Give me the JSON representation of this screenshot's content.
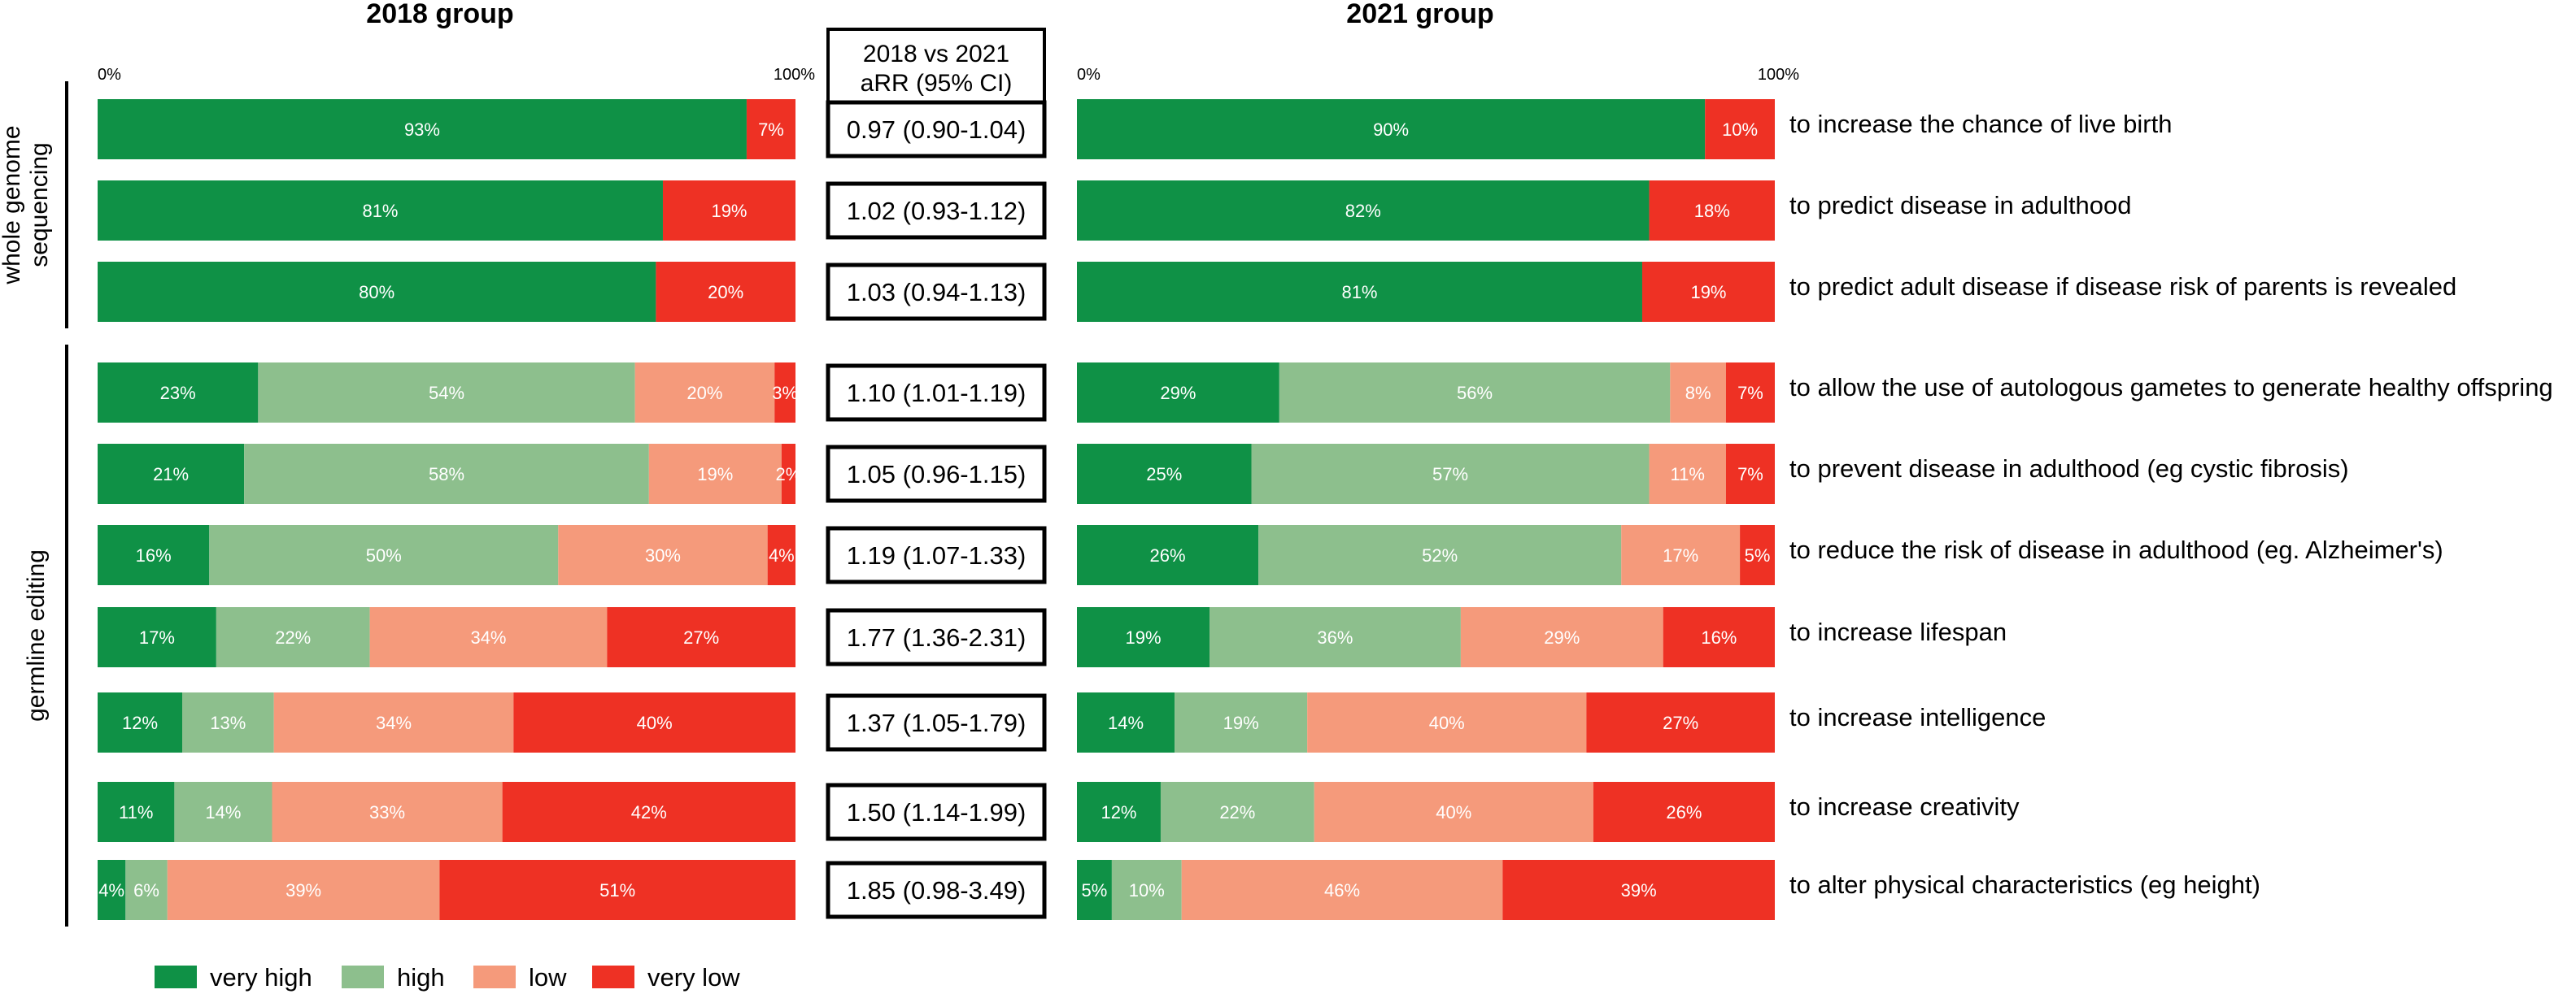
{
  "chart_data": {
    "type": "bar",
    "layout": "horizontal-100%-stacked",
    "panels": [
      {
        "title": "2018 group",
        "axis_start_label": "0%",
        "axis_end_label": "100%"
      },
      {
        "title": "2021 group",
        "axis_start_label": "0%",
        "axis_end_label": "100%"
      }
    ],
    "arr_header": [
      "2018 vs 2021",
      "aRR (95% CI)"
    ],
    "legend": [
      {
        "name": "very high",
        "color": "#0f9146"
      },
      {
        "name": "high",
        "color": "#8dbf8d"
      },
      {
        "name": "low",
        "color": "#f59a7b"
      },
      {
        "name": "very low",
        "color": "#ee3124"
      }
    ],
    "sections": [
      {
        "label": [
          "whole genome",
          "sequencing"
        ],
        "rows": [
          0,
          2
        ]
      },
      {
        "label": [
          "germline editing"
        ],
        "rows": [
          3,
          9
        ]
      }
    ],
    "rows": [
      {
        "label": "to increase the chance of live birth",
        "arr": "0.97 (0.90-1.04)",
        "v2018": [
          93,
          0,
          0,
          7
        ],
        "v2021": [
          90,
          0,
          0,
          10
        ]
      },
      {
        "label": "to predict disease in adulthood",
        "arr": "1.02 (0.93-1.12)",
        "v2018": [
          81,
          0,
          0,
          19
        ],
        "v2021": [
          82,
          0,
          0,
          18
        ]
      },
      {
        "label": "to predict adult disease if disease risk of parents is revealed",
        "arr": "1.03 (0.94-1.13)",
        "v2018": [
          80,
          0,
          0,
          20
        ],
        "v2021": [
          81,
          0,
          0,
          19
        ]
      },
      {
        "label": "to allow the use of autologous gametes to generate healthy offspring",
        "arr": "1.10 (1.01-1.19)",
        "v2018": [
          23,
          54,
          20,
          3
        ],
        "v2021": [
          29,
          56,
          8,
          7
        ]
      },
      {
        "label": "to prevent disease in adulthood (eg cystic fibrosis)",
        "arr": "1.05 (0.96-1.15)",
        "v2018": [
          21,
          58,
          19,
          2
        ],
        "v2021": [
          25,
          57,
          11,
          7
        ]
      },
      {
        "label": "to reduce the risk of disease in adulthood (eg. Alzheimer's)",
        "arr": "1.19 (1.07-1.33)",
        "v2018": [
          16,
          50,
          30,
          4
        ],
        "v2021": [
          26,
          52,
          17,
          5
        ]
      },
      {
        "label": "to increase lifespan",
        "arr": "1.77 (1.36-2.31)",
        "v2018": [
          17,
          22,
          34,
          27
        ],
        "v2021": [
          19,
          36,
          29,
          16
        ]
      },
      {
        "label": "to increase intelligence",
        "arr": "1.37 (1.05-1.79)",
        "v2018": [
          12,
          13,
          34,
          40
        ],
        "v2021": [
          14,
          19,
          40,
          27
        ]
      },
      {
        "label": "to increase creativity",
        "arr": "1.50 (1.14-1.99)",
        "v2018": [
          11,
          14,
          33,
          42
        ],
        "v2021": [
          12,
          22,
          40,
          26
        ]
      },
      {
        "label": "to alter physical characteristics (eg height)",
        "arr": "1.85 (0.98-3.49)",
        "v2018": [
          4,
          6,
          39,
          51
        ],
        "v2021": [
          5,
          10,
          46,
          39
        ]
      }
    ]
  }
}
